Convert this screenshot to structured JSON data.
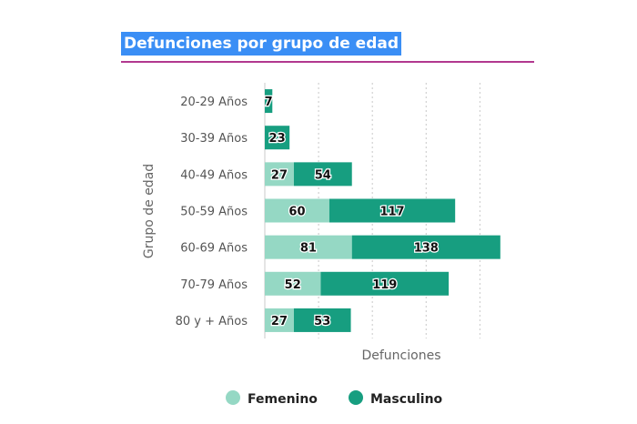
{
  "chart_data": {
    "type": "bar",
    "orientation": "horizontal",
    "stacked": true,
    "title": "Defunciones por grupo de edad",
    "xlabel": "Defunciones",
    "ylabel": "Grupo de edad",
    "categories": [
      "20-29 Años",
      "30-39 Años",
      "40-49 Años",
      "50-59 Años",
      "60-69 Años",
      "70-79 Años",
      "80 y + Años"
    ],
    "series": [
      {
        "name": "Femenino",
        "values": [
          0,
          0,
          27,
          60,
          81,
          52,
          27
        ],
        "color": "#95d8c4"
      },
      {
        "name": "Masculino",
        "values": [
          7,
          23,
          54,
          117,
          138,
          119,
          53
        ],
        "color": "#179e80"
      }
    ],
    "xlim": [
      0,
      230
    ],
    "grid": true,
    "legend_position": "bottom"
  }
}
